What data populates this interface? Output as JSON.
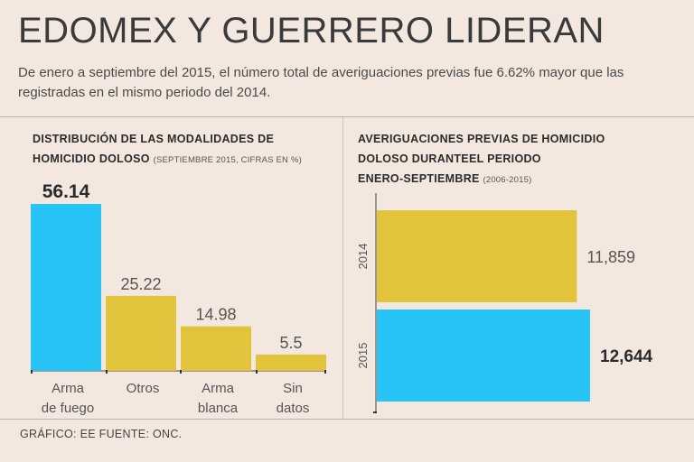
{
  "header": {
    "title": "EDOMEX Y GUERRERO LIDERAN",
    "subtitle": "De enero a septiembre del 2015, el número total de averiguaciones previas fue 6.62% mayor que las registradas en el mismo periodo del 2014."
  },
  "footer": {
    "credit": "GRÁFICO: EE  FUENTE: ONC."
  },
  "colors": {
    "highlight": "#29c4f6",
    "base": "#e2c43c",
    "background": "#f3e8e0"
  },
  "chart_data": [
    {
      "type": "bar",
      "title_line1": "DISTRIBUCIÓN DE LAS MODALIDADES DE",
      "title_line2": "HOMICIDIO DOLOSO",
      "note": "(SEPTIEMBRE 2015, CIFRAS EN %)",
      "categories": [
        [
          "Arma",
          "de fuego"
        ],
        [
          "Otros"
        ],
        [
          "Arma",
          "blanca"
        ],
        [
          "Sin",
          "datos"
        ]
      ],
      "values": [
        56.14,
        25.22,
        14.98,
        5.5
      ],
      "labels": [
        "56.14",
        "25.22",
        "14.98",
        "5.5"
      ],
      "highlight_index": 0,
      "ylim": [
        0,
        56.14
      ]
    },
    {
      "type": "bar",
      "orientation": "horizontal",
      "title_line1": "AVERIGUACIONES PREVIAS DE HOMICIDIO",
      "title_line2": "DOLOSO DURANTEEL PERIODO",
      "title_line3": "ENERO-SEPTIEMBRE",
      "note": "(2006-2015)",
      "categories": [
        "2014",
        "2015"
      ],
      "values": [
        11859,
        12644
      ],
      "labels": [
        "11,859",
        "12,644"
      ],
      "highlight_index": 1,
      "xlim": [
        0,
        12644
      ]
    }
  ]
}
